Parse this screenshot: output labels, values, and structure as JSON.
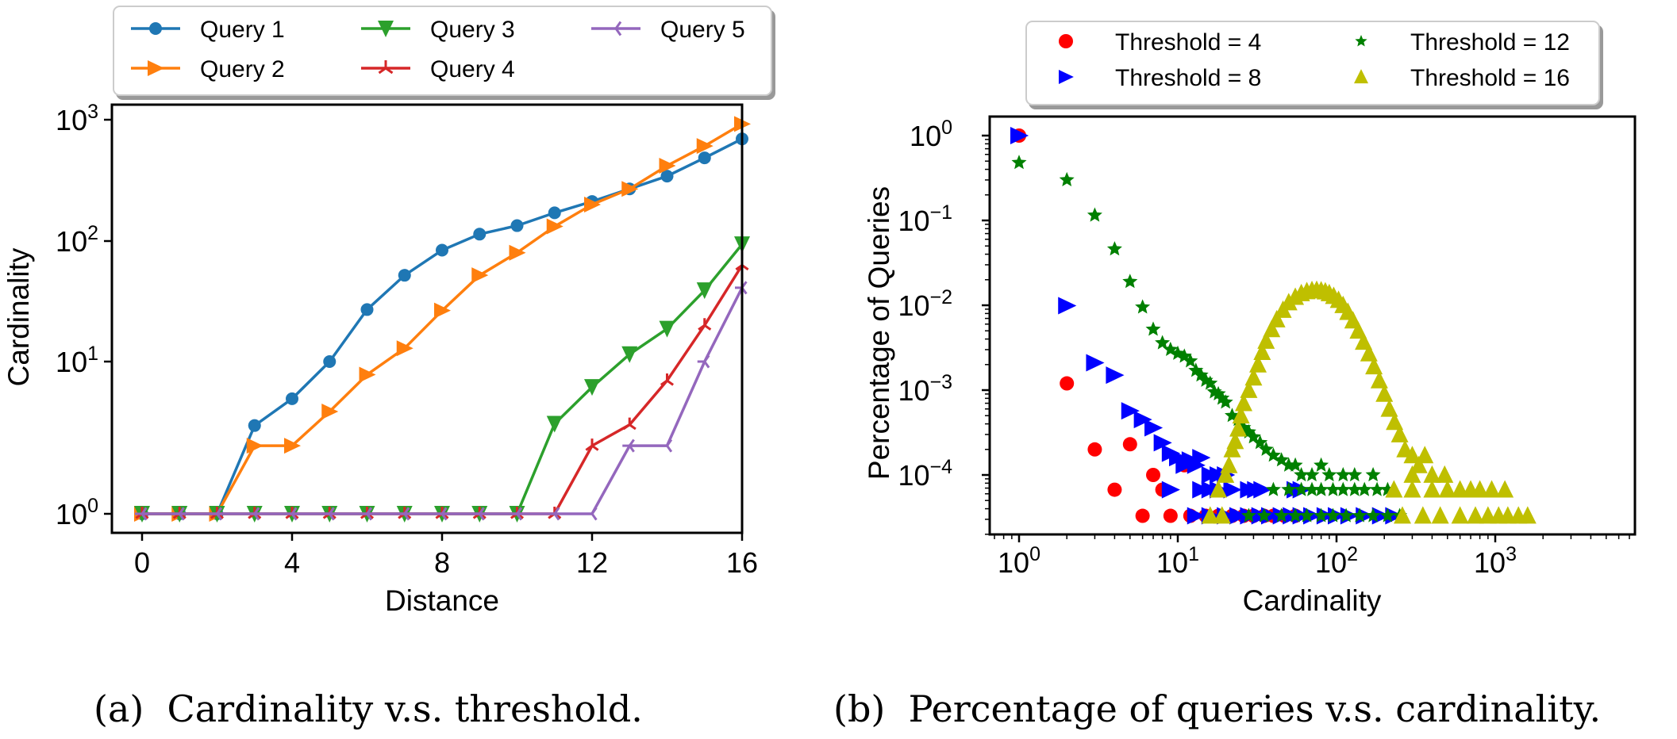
{
  "chart_data": [
    {
      "id": "a",
      "type": "line",
      "title": "",
      "caption": "(a)  Cardinality v.s. threshold.",
      "xlabel": "Distance",
      "ylabel": "Cardinality",
      "xscale": "linear",
      "yscale": "log",
      "xlim": [
        -0.8,
        16.5
      ],
      "ylim": [
        0.85,
        1200
      ],
      "xticks": [
        0,
        4,
        8,
        12,
        16
      ],
      "xtick_labels": [
        "0",
        "4",
        "8",
        "12",
        "16"
      ],
      "yticks": [
        1,
        10,
        100,
        1000
      ],
      "ytick_labels": [
        {
          "base": "10",
          "exp": "0"
        },
        {
          "base": "10",
          "exp": "1"
        },
        {
          "base": "10",
          "exp": "2"
        },
        {
          "base": "10",
          "exp": "3"
        }
      ],
      "grid": false,
      "legend": {
        "placement": "top-outside",
        "columns": 3
      },
      "x": [
        0,
        1,
        2,
        3,
        4,
        5,
        6,
        7,
        8,
        9,
        10,
        11,
        12,
        13,
        14,
        15,
        16
      ],
      "series": [
        {
          "name": "Query 1",
          "color": "#1f77b4",
          "marker": "circle",
          "values": [
            1,
            1,
            1,
            3.8,
            5.7,
            10,
            27,
            52,
            84,
            114,
            134,
            171,
            212,
            269,
            343,
            485,
            695
          ]
        },
        {
          "name": "Query 2",
          "color": "#ff7f0e",
          "marker": "triangle-right",
          "values": [
            1,
            1,
            1,
            2.8,
            2.8,
            4.7,
            8.2,
            12.9,
            26.5,
            52,
            80,
            132,
            200,
            269,
            418,
            608,
            923
          ]
        },
        {
          "name": "Query 3",
          "color": "#2ca02c",
          "marker": "triangle-down",
          "values": [
            1,
            1,
            1,
            1,
            1,
            1,
            1,
            1,
            1,
            1,
            1,
            3.9,
            6.8,
            11.5,
            18.7,
            39,
            94
          ]
        },
        {
          "name": "Query 4",
          "color": "#d62728",
          "marker": "tri-up",
          "values": [
            1,
            1,
            1,
            1,
            1,
            1,
            1,
            1,
            1,
            1,
            1,
            1,
            2.8,
            3.85,
            7.5,
            20,
            63
          ]
        },
        {
          "name": "Query 5",
          "color": "#9467bd",
          "marker": "tri-left",
          "values": [
            1,
            1,
            1,
            1,
            1,
            1,
            1,
            1,
            1,
            1,
            1,
            1,
            1,
            2.8,
            2.8,
            10,
            41
          ]
        }
      ]
    },
    {
      "id": "b",
      "type": "scatter",
      "title": "",
      "caption": "(b)  Percentage of queries v.s. cardinality.",
      "xlabel": "Cardinality",
      "ylabel": "Percentage of Queries",
      "xscale": "log",
      "yscale": "log",
      "xlim": [
        0.65,
        7600
      ],
      "ylim": [
        2e-05,
        1.65
      ],
      "xticks": [
        1,
        10,
        100,
        1000
      ],
      "xtick_labels": [
        {
          "base": "10",
          "exp": "0"
        },
        {
          "base": "10",
          "exp": "1"
        },
        {
          "base": "10",
          "exp": "2"
        },
        {
          "base": "10",
          "exp": "3"
        }
      ],
      "yticks": [
        1,
        0.1,
        0.01,
        0.001,
        0.0001
      ],
      "ytick_labels": [
        {
          "base": "10",
          "exp": "0"
        },
        {
          "base": "10",
          "exp": "−1"
        },
        {
          "base": "10",
          "exp": "−2"
        },
        {
          "base": "10",
          "exp": "−3"
        },
        {
          "base": "10",
          "exp": "−4"
        }
      ],
      "grid": false,
      "legend": {
        "placement": "top-outside",
        "columns": 2
      },
      "series": [
        {
          "name": "Threshold = 4",
          "color": "#ff0000",
          "marker": "circle",
          "points": [
            [
              1,
              1
            ],
            [
              2,
              0.0012
            ],
            [
              3,
              0.0002
            ],
            [
              4,
              6.7e-05
            ],
            [
              5,
              0.00023
            ],
            [
              6,
              3.3e-05
            ],
            [
              7,
              0.0001
            ],
            [
              8,
              6.7e-05
            ],
            [
              9,
              3.3e-05
            ],
            [
              11,
              0.00013
            ],
            [
              12,
              3.3e-05
            ],
            [
              15,
              3.3e-05
            ],
            [
              18,
              3.3e-05
            ],
            [
              22,
              3.3e-05
            ],
            [
              26,
              3.3e-05
            ],
            [
              30,
              3.3e-05
            ],
            [
              35,
              3.3e-05
            ],
            [
              40,
              3.3e-05
            ],
            [
              47,
              3.3e-05
            ],
            [
              55,
              3.3e-05
            ]
          ]
        },
        {
          "name": "Threshold = 8",
          "color": "#0000ff",
          "marker": "triangle-right",
          "points": [
            [
              1,
              1
            ],
            [
              2,
              0.0099
            ],
            [
              3,
              0.0021
            ],
            [
              4,
              0.0015
            ],
            [
              5,
              0.00057
            ],
            [
              6,
              0.00045
            ],
            [
              7,
              0.00036
            ],
            [
              8,
              0.00024
            ],
            [
              9,
              0.00018
            ],
            [
              10,
              0.00016
            ],
            [
              11,
              0.00013
            ],
            [
              12,
              0.00015
            ],
            [
              13,
              0.00013
            ],
            [
              14,
              0.00016
            ],
            [
              16,
              0.0001
            ],
            [
              18,
              0.0001
            ],
            [
              20,
              0.0001
            ],
            [
              9,
              6.7e-05
            ],
            [
              14,
              6.7e-05
            ],
            [
              16,
              6.7e-05
            ],
            [
              18,
              6.7e-05
            ],
            [
              22,
              6.7e-05
            ],
            [
              28,
              6.7e-05
            ],
            [
              31,
              6.7e-05
            ],
            [
              34,
              6.7e-05
            ],
            [
              55,
              6.7e-05
            ],
            [
              60,
              6.7e-05
            ],
            [
              13,
              3.3e-05
            ],
            [
              16,
              3.3e-05
            ],
            [
              20,
              3.3e-05
            ],
            [
              24,
              3.3e-05
            ],
            [
              28,
              3.3e-05
            ],
            [
              33,
              3.3e-05
            ],
            [
              38,
              3.3e-05
            ],
            [
              45,
              3.3e-05
            ],
            [
              52,
              3.3e-05
            ],
            [
              60,
              3.3e-05
            ],
            [
              70,
              3.3e-05
            ],
            [
              85,
              3.3e-05
            ],
            [
              100,
              3.3e-05
            ],
            [
              120,
              3.3e-05
            ],
            [
              150,
              3.3e-05
            ],
            [
              190,
              3.3e-05
            ],
            [
              230,
              3.3e-05
            ]
          ]
        },
        {
          "name": "Threshold = 12",
          "color": "#008000",
          "marker": "star",
          "points": [
            [
              1,
              0.48
            ],
            [
              2,
              0.3
            ],
            [
              3,
              0.115
            ],
            [
              4,
              0.046
            ],
            [
              5,
              0.019
            ],
            [
              6,
              0.0095
            ],
            [
              7,
              0.0052
            ],
            [
              8,
              0.0036
            ],
            [
              9,
              0.003
            ],
            [
              10,
              0.0027
            ],
            [
              11,
              0.0025
            ],
            [
              12,
              0.0022
            ],
            [
              13,
              0.0017
            ],
            [
              14,
              0.0015
            ],
            [
              15,
              0.0013
            ],
            [
              16,
              0.0012
            ],
            [
              17,
              0.00095
            ],
            [
              18,
              0.0009
            ],
            [
              19,
              0.0008
            ],
            [
              20,
              0.00072
            ],
            [
              22,
              0.0005
            ],
            [
              24,
              0.00045
            ],
            [
              26,
              0.00036
            ],
            [
              28,
              0.00032
            ],
            [
              30,
              0.00028
            ],
            [
              33,
              0.00024
            ],
            [
              36,
              0.0002
            ],
            [
              40,
              0.00017
            ],
            [
              45,
              0.00015
            ],
            [
              50,
              0.00013
            ],
            [
              55,
              0.00013
            ],
            [
              60,
              0.0001
            ],
            [
              70,
              0.0001
            ],
            [
              80,
              0.00013
            ],
            [
              90,
              0.0001
            ],
            [
              110,
              0.0001
            ],
            [
              130,
              0.0001
            ],
            [
              170,
              0.0001
            ],
            [
              40,
              6.7e-05
            ],
            [
              50,
              6.7e-05
            ],
            [
              60,
              6.7e-05
            ],
            [
              70,
              6.7e-05
            ],
            [
              80,
              6.7e-05
            ],
            [
              95,
              6.7e-05
            ],
            [
              110,
              6.7e-05
            ],
            [
              130,
              6.7e-05
            ],
            [
              150,
              6.7e-05
            ],
            [
              180,
              6.7e-05
            ],
            [
              210,
              6.7e-05
            ],
            [
              28,
              3.3e-05
            ],
            [
              35,
              3.3e-05
            ],
            [
              45,
              3.3e-05
            ],
            [
              55,
              3.3e-05
            ],
            [
              65,
              3.3e-05
            ],
            [
              80,
              3.3e-05
            ],
            [
              95,
              3.3e-05
            ],
            [
              115,
              3.3e-05
            ],
            [
              140,
              3.3e-05
            ],
            [
              170,
              3.3e-05
            ],
            [
              210,
              3.3e-05
            ],
            [
              250,
              3.3e-05
            ]
          ]
        },
        {
          "name": "Threshold = 16",
          "color": "#bfbf00",
          "marker": "triangle-up",
          "points": [
            [
              16,
              3.3e-05
            ],
            [
              19,
              3.3e-05
            ],
            [
              18,
              6.7e-05
            ],
            [
              20,
              0.0001
            ],
            [
              21,
              0.00013
            ],
            [
              22,
              0.0002
            ],
            [
              23,
              0.00025
            ],
            [
              24,
              0.00035
            ],
            [
              25,
              0.0005
            ],
            [
              26,
              0.0007
            ],
            [
              28,
              0.001
            ],
            [
              30,
              0.0014
            ],
            [
              32,
              0.002
            ],
            [
              34,
              0.0028
            ],
            [
              36,
              0.0038
            ],
            [
              39,
              0.0052
            ],
            [
              42,
              0.0068
            ],
            [
              46,
              0.0088
            ],
            [
              50,
              0.0108
            ],
            [
              55,
              0.0125
            ],
            [
              60,
              0.0138
            ],
            [
              65,
              0.0146
            ],
            [
              70,
              0.015
            ],
            [
              75,
              0.0151
            ],
            [
              80,
              0.0149
            ],
            [
              85,
              0.0145
            ],
            [
              90,
              0.0138
            ],
            [
              96,
              0.0128
            ],
            [
              103,
              0.0115
            ],
            [
              110,
              0.01
            ],
            [
              118,
              0.0083
            ],
            [
              127,
              0.0066
            ],
            [
              137,
              0.005
            ],
            [
              148,
              0.0037
            ],
            [
              160,
              0.0027
            ],
            [
              172,
              0.0019
            ],
            [
              186,
              0.0013
            ],
            [
              200,
              0.0009
            ],
            [
              215,
              0.0006
            ],
            [
              232,
              0.00042
            ],
            [
              250,
              0.0003
            ],
            [
              270,
              0.0002
            ],
            [
              300,
              0.00017
            ],
            [
              330,
              0.00013
            ],
            [
              360,
              0.00017
            ],
            [
              300,
              0.0001
            ],
            [
              400,
              0.0001
            ],
            [
              480,
              0.0001
            ],
            [
              230,
              6.7e-05
            ],
            [
              300,
              6.7e-05
            ],
            [
              400,
              6.7e-05
            ],
            [
              500,
              6.7e-05
            ],
            [
              600,
              6.7e-05
            ],
            [
              700,
              6.7e-05
            ],
            [
              800,
              6.7e-05
            ],
            [
              950,
              6.7e-05
            ],
            [
              1150,
              6.7e-05
            ],
            [
              260,
              3.3e-05
            ],
            [
              350,
              3.3e-05
            ],
            [
              450,
              3.3e-05
            ],
            [
              600,
              3.3e-05
            ],
            [
              750,
              3.3e-05
            ],
            [
              900,
              3.3e-05
            ],
            [
              1050,
              3.3e-05
            ],
            [
              1200,
              3.3e-05
            ],
            [
              1400,
              3.3e-05
            ],
            [
              1600,
              3.3e-05
            ]
          ]
        }
      ]
    }
  ]
}
